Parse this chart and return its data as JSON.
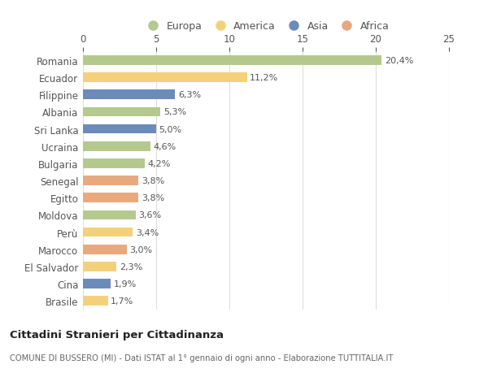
{
  "categories": [
    "Romania",
    "Ecuador",
    "Filippine",
    "Albania",
    "Sri Lanka",
    "Ucraina",
    "Bulgaria",
    "Senegal",
    "Egitto",
    "Moldova",
    "Perù",
    "Marocco",
    "El Salvador",
    "Cina",
    "Brasile"
  ],
  "values": [
    20.4,
    11.2,
    6.3,
    5.3,
    5.0,
    4.6,
    4.2,
    3.8,
    3.8,
    3.6,
    3.4,
    3.0,
    2.3,
    1.9,
    1.7
  ],
  "labels": [
    "20,4%",
    "11,2%",
    "6,3%",
    "5,3%",
    "5,0%",
    "4,6%",
    "4,2%",
    "3,8%",
    "3,8%",
    "3,6%",
    "3,4%",
    "3,0%",
    "2,3%",
    "1,9%",
    "1,7%"
  ],
  "continents": [
    "Europa",
    "America",
    "Asia",
    "Europa",
    "Asia",
    "Europa",
    "Europa",
    "Africa",
    "Africa",
    "Europa",
    "America",
    "Africa",
    "America",
    "Asia",
    "America"
  ],
  "colors": {
    "Europa": "#b5c98e",
    "America": "#f5d07a",
    "Asia": "#6b8cba",
    "Africa": "#e8a97e"
  },
  "legend_order": [
    "Europa",
    "America",
    "Asia",
    "Africa"
  ],
  "title": "Cittadini Stranieri per Cittadinanza",
  "subtitle": "COMUNE DI BUSSERO (MI) - Dati ISTAT al 1° gennaio di ogni anno - Elaborazione TUTTITALIA.IT",
  "xlim": [
    0,
    25
  ],
  "xticks": [
    0,
    5,
    10,
    15,
    20,
    25
  ],
  "background_color": "#ffffff",
  "bar_height": 0.55,
  "label_fontsize": 8.0,
  "ytick_fontsize": 8.5,
  "xtick_fontsize": 8.5
}
